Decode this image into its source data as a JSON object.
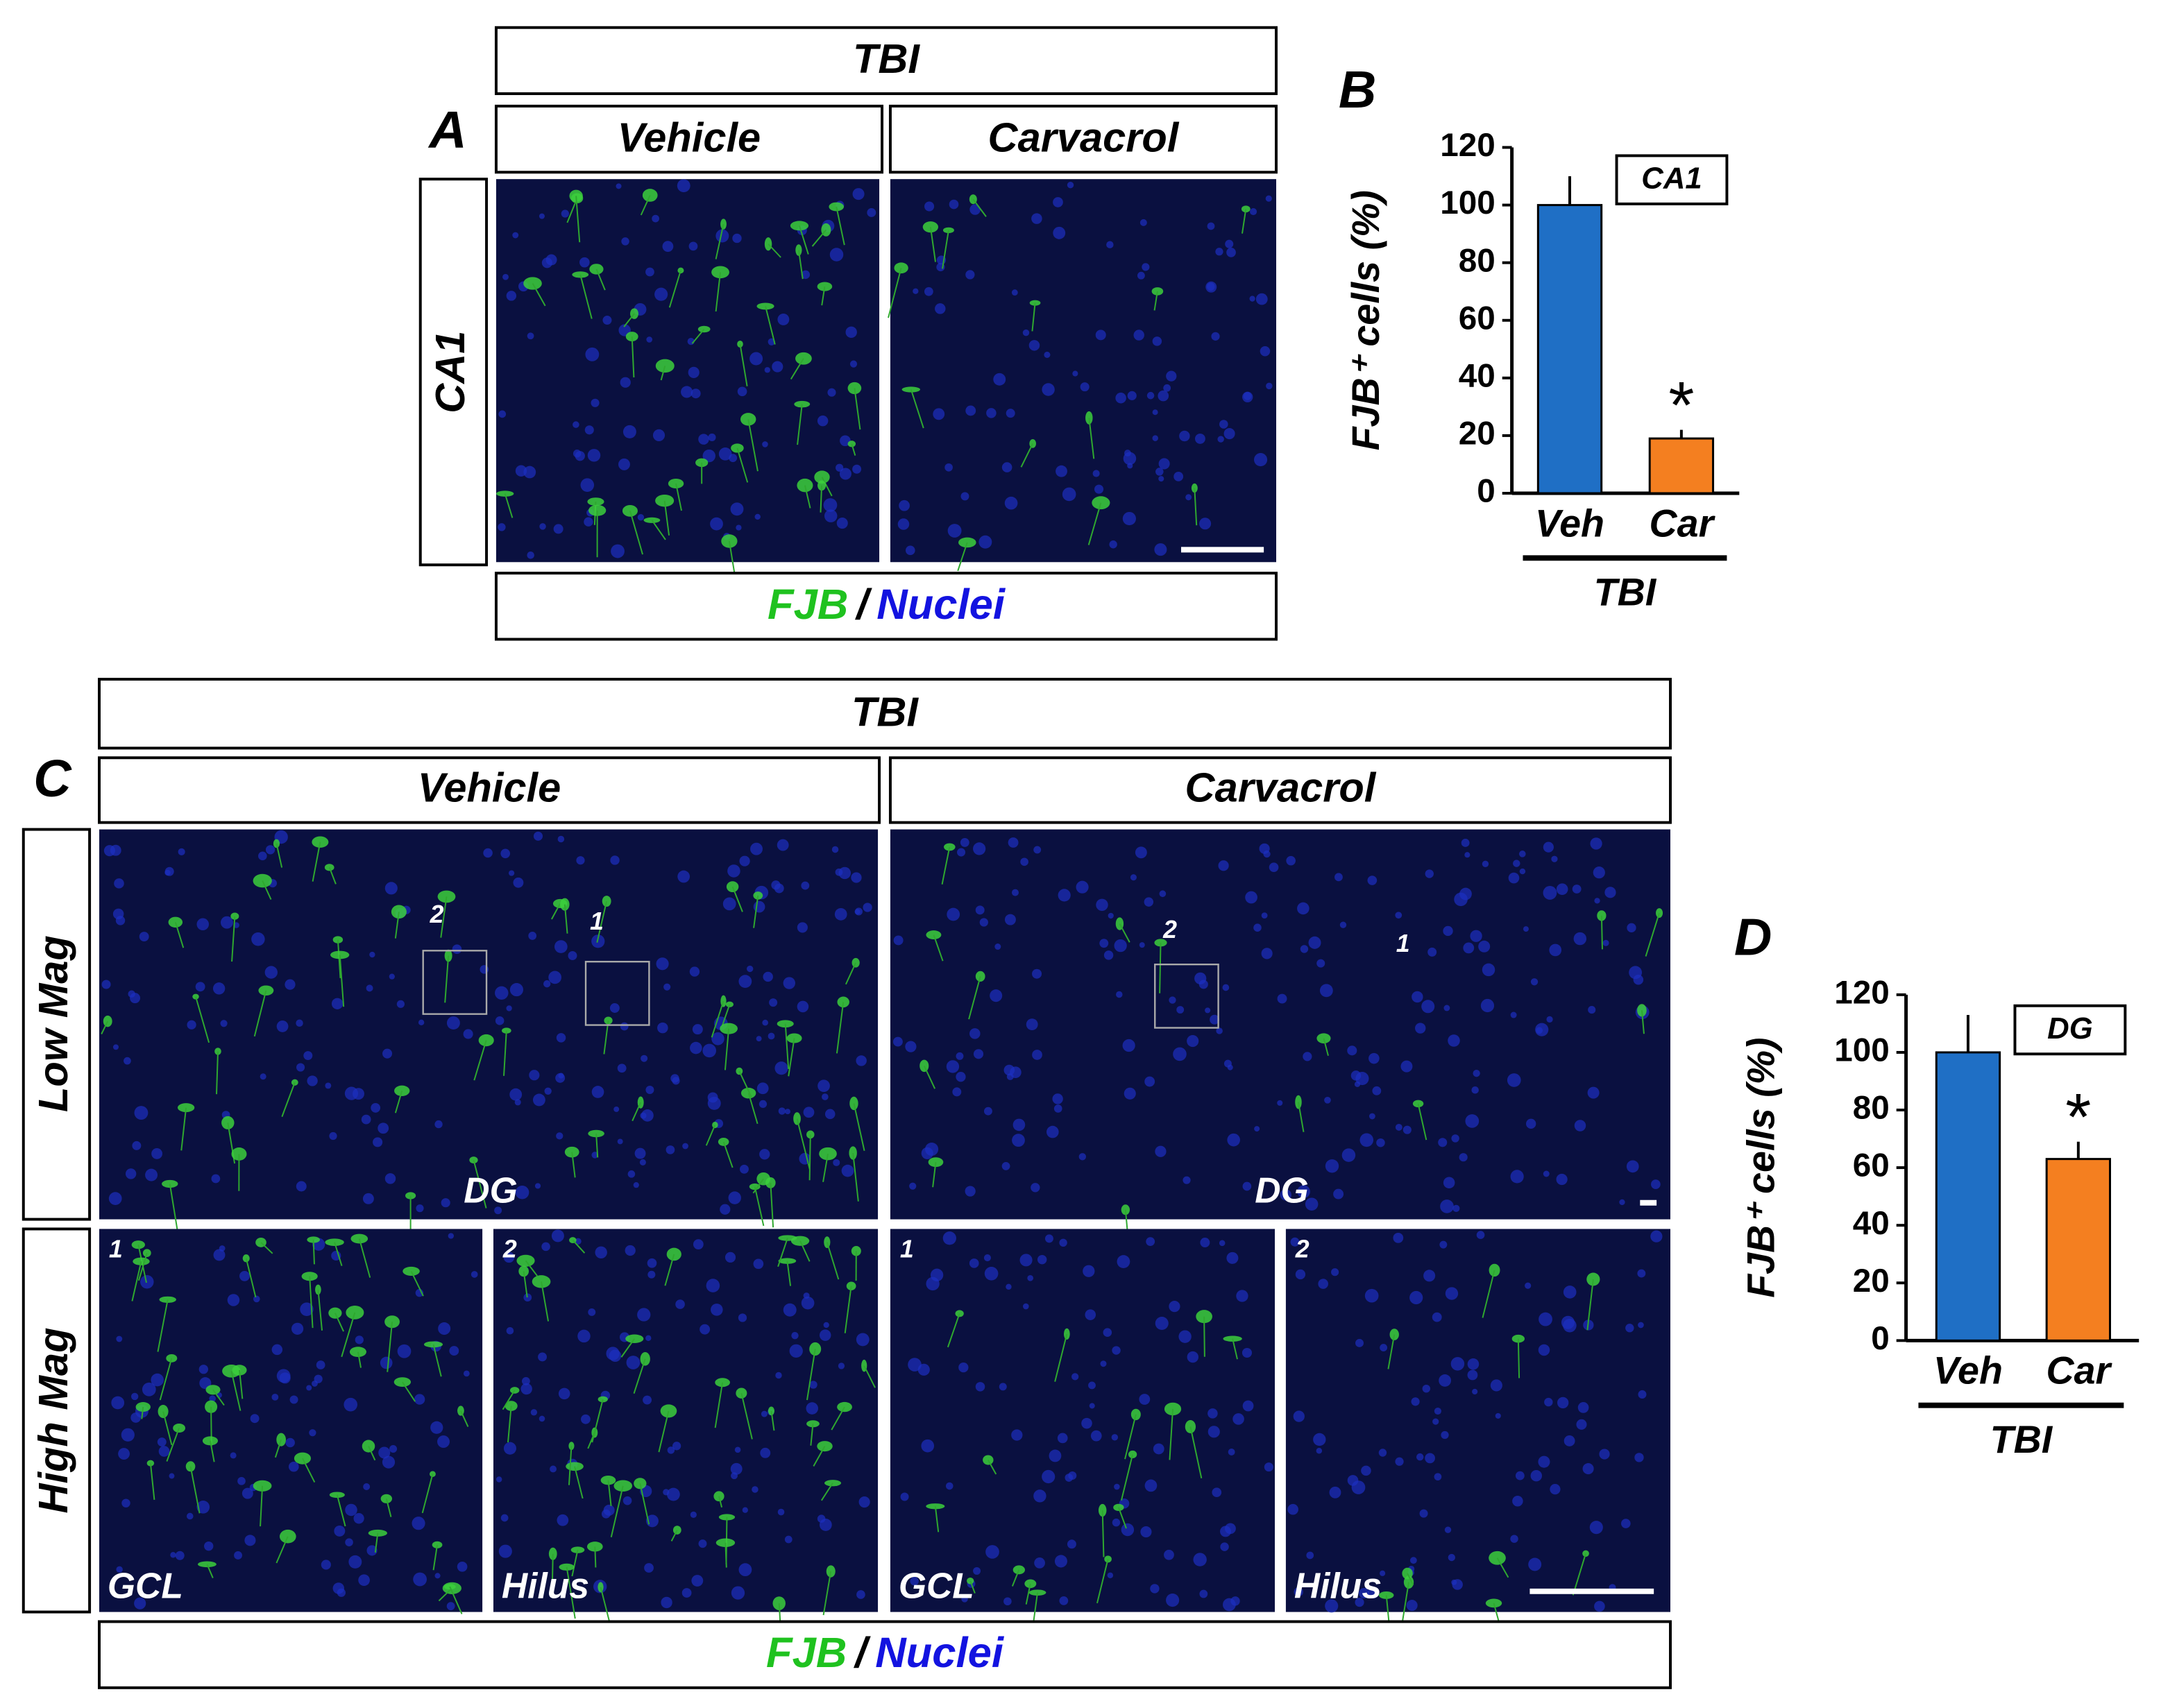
{
  "panels": {
    "A": {
      "label": "A",
      "group": "TBI",
      "columns": [
        "Vehicle",
        "Carvacrol"
      ],
      "row": "CA1",
      "stain": "FJB",
      "separator": "/",
      "counterstain": "Nuclei"
    },
    "C": {
      "label": "C",
      "group": "TBI",
      "columns": [
        "Vehicle",
        "Carvacrol"
      ],
      "rows": [
        "Low Mag",
        "High Mag"
      ],
      "low_mag": [
        {
          "region": "DG",
          "insets": [
            "2",
            "1"
          ]
        },
        {
          "region": "DG",
          "insets": [
            "2",
            "1"
          ]
        }
      ],
      "high_mag": [
        {
          "number": "1",
          "region": "GCL"
        },
        {
          "number": "2",
          "region": "Hilus"
        },
        {
          "number": "1",
          "region": "GCL"
        },
        {
          "number": "2",
          "region": "Hilus"
        }
      ],
      "stain": "FJB",
      "separator": "/",
      "counterstain": "Nuclei"
    }
  },
  "chart_data": [
    {
      "type": "bar",
      "label": "B",
      "title": "CA1",
      "categories": [
        "Veh",
        "Car"
      ],
      "values": [
        100,
        19
      ],
      "errors": [
        10,
        3
      ],
      "colors": [
        "#1f6fc5",
        "#f47f20"
      ],
      "ylabel": "FJB⁺ cells (%)",
      "ylim": [
        0,
        120
      ],
      "yticks": [
        0,
        20,
        40,
        60,
        80,
        100,
        120
      ],
      "group": "TBI",
      "annotation": "*"
    },
    {
      "type": "bar",
      "label": "D",
      "title": "DG",
      "categories": [
        "Veh",
        "Car"
      ],
      "values": [
        100,
        63
      ],
      "errors": [
        13,
        6
      ],
      "colors": [
        "#1f6fc5",
        "#f47f20"
      ],
      "ylabel": "FJB⁺ cells (%)",
      "ylim": [
        0,
        120
      ],
      "yticks": [
        0,
        20,
        40,
        60,
        80,
        100,
        120
      ],
      "group": "TBI",
      "annotation": "*"
    }
  ]
}
